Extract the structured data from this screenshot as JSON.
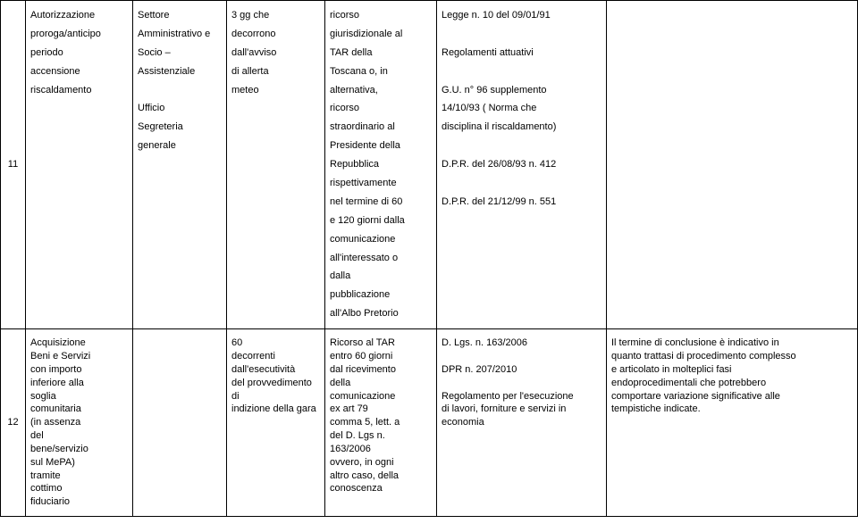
{
  "rows": [
    {
      "idx": "11",
      "c1": "Autorizzazione\nproroga/anticipo periodo\naccensione riscaldamento",
      "c2": "Settore\nAmministrativo e\nSocio –\nAssistenziale\n\nUfficio\nSegreteria\ngenerale",
      "c3": "3 gg che\ndecorrono\ndall'avviso\ndi allerta\nmeteo",
      "c4": "ricorso\ngiurisdizionale al\nTAR della\nToscana o, in\nalternativa,\nricorso\nstraordinario al\nPresidente della\nRepubblica\nrispettivamente\nnel termine di 60\ne 120 giorni dalla\ncomunicazione\nall'interessato o\ndalla\npubblicazione\nall'Albo Pretorio",
      "c5": " Legge n. 10 del 09/01/91\n\nRegolamenti attuativi\n\nG.U. n° 96 supplemento\n14/10/93 ( Norma che\ndisciplina il riscaldamento)\n\nD.P.R. del 26/08/93 n. 412\n\nD.P.R. del 21/12/99 n. 551",
      "c6": ""
    },
    {
      "idx": "12",
      "c1": "Acquisizione\nBeni e Servizi\ncon importo\ninferiore alla\nsoglia\ncomunitaria\n(in assenza\ndel\nbene/servizio\nsul MePA)\ntramite\ncottimo\nfiduciario",
      "c2": "",
      "c3": "60\ndecorrenti\ndall'esecutività\ndel provvedimento di\nindizione della gara",
      "c4": "Ricorso al TAR\nentro 60 giorni\ndal ricevimento\ndella\ncomunicazione\nex art 79\ncomma 5, lett. a\ndel D. Lgs n.\n163/2006\novvero, in ogni\naltro caso, della\nconoscenza",
      "c5": "D. Lgs. n. 163/2006\n\nDPR n. 207/2010\n\nRegolamento per l'esecuzione\ndi lavori, forniture e servizi in\neconomia",
      "c6": "Il termine di conclusione è indicativo in\nquanto trattasi di procedimento complesso\ne articolato in molteplici fasi\nendoprocedimentali che potrebbero\ncomportare variazione significative alle\ntempistiche indicate."
    }
  ]
}
